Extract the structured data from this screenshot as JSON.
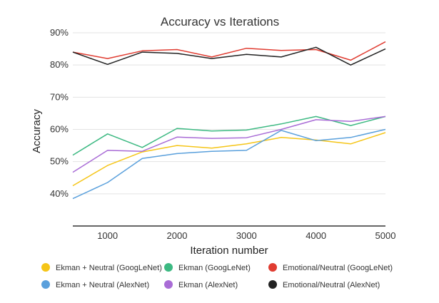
{
  "chart_data": {
    "type": "line",
    "title": "Accuracy vs Iterations",
    "xlabel": "Iteration number",
    "ylabel": "Accuracy",
    "x": [
      500,
      1000,
      1500,
      2000,
      2500,
      3000,
      3500,
      4000,
      4500,
      5000
    ],
    "xlim": [
      500,
      5000
    ],
    "ylim": [
      30,
      90
    ],
    "xticks": [
      1000,
      2000,
      3000,
      4000,
      5000
    ],
    "xtick_labels": [
      "1000",
      "2000",
      "3000",
      "4000",
      "5000"
    ],
    "yticks": [
      40,
      50,
      60,
      70,
      80,
      90
    ],
    "ytick_labels": [
      "40%",
      "50%",
      "60%",
      "70%",
      "80%",
      "90%"
    ],
    "grid": "horizontal",
    "legend_position": "bottom",
    "series": [
      {
        "name": "Ekman + Neutral (GoogLeNet)",
        "color": "#f5c518",
        "values": [
          42.5,
          48.8,
          53.0,
          55.0,
          54.2,
          55.5,
          57.5,
          56.7,
          55.5,
          59.0
        ]
      },
      {
        "name": "Ekman (GoogLeNet)",
        "color": "#3cb982",
        "values": [
          52.0,
          58.6,
          54.4,
          60.3,
          59.5,
          59.8,
          61.7,
          64.0,
          61.2,
          64.0
        ]
      },
      {
        "name": "Emotional/Neutral (GoogLeNet)",
        "color": "#e03c31",
        "values": [
          84.0,
          82.0,
          84.4,
          84.8,
          82.5,
          85.2,
          84.5,
          84.8,
          81.5,
          87.2
        ]
      },
      {
        "name": "Ekman + Neutral (AlexNet)",
        "color": "#5aa0dc",
        "values": [
          38.5,
          43.5,
          51.0,
          52.5,
          53.2,
          53.5,
          59.7,
          56.5,
          57.5,
          60.0
        ]
      },
      {
        "name": "Ekman (AlexNet)",
        "color": "#a96cd6",
        "values": [
          46.7,
          53.5,
          53.2,
          57.6,
          57.2,
          57.4,
          60.0,
          63.0,
          62.5,
          64.0
        ]
      },
      {
        "name": "Emotional/Neutral (AlexNet)",
        "color": "#222222",
        "values": [
          84.0,
          80.2,
          84.0,
          83.6,
          82.0,
          83.3,
          82.5,
          85.5,
          80.0,
          85.0
        ]
      }
    ]
  }
}
